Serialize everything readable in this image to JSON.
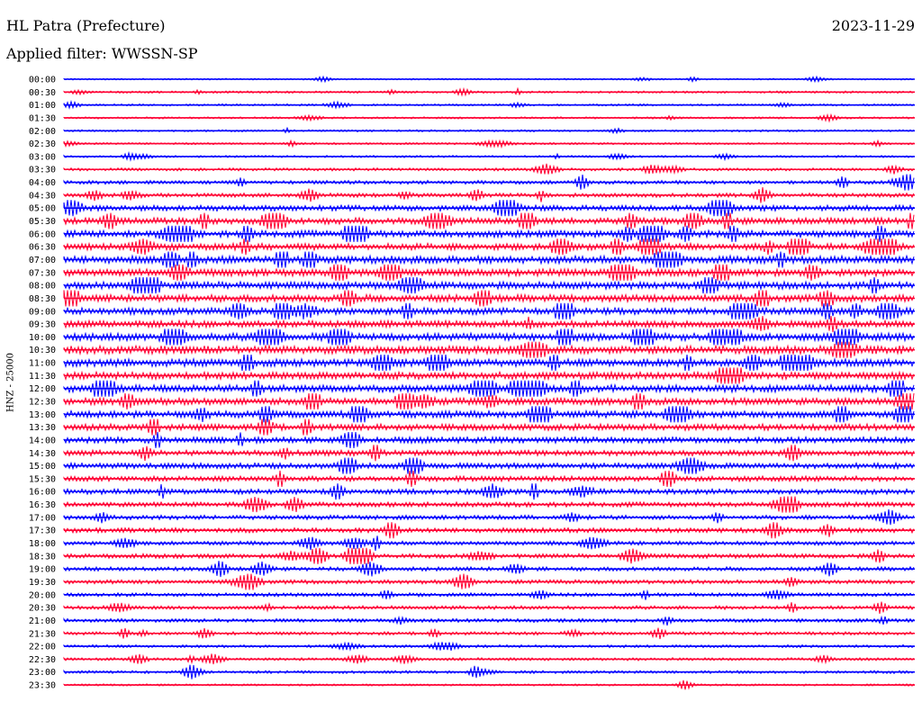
{
  "header": {
    "station": "HL Patra (Prefecture)",
    "date": "2023-11-29",
    "filter": "Applied filter: WWSSN-SP"
  },
  "chart_data": {
    "type": "line",
    "ylabel": "HNZ - 25000",
    "colors": [
      "#0000ff",
      "#ff0033"
    ],
    "grid": false,
    "legend": "none",
    "series": [
      {
        "time": "00:00",
        "level": 0.05
      },
      {
        "time": "00:30",
        "level": 0.12
      },
      {
        "time": "01:00",
        "level": 0.1
      },
      {
        "time": "01:30",
        "level": 0.1
      },
      {
        "time": "02:00",
        "level": 0.1
      },
      {
        "time": "02:30",
        "level": 0.1
      },
      {
        "time": "03:00",
        "level": 0.12
      },
      {
        "time": "03:30",
        "level": 0.2
      },
      {
        "time": "04:00",
        "level": 0.3
      },
      {
        "time": "04:30",
        "level": 0.35
      },
      {
        "time": "05:00",
        "level": 0.55
      },
      {
        "time": "05:30",
        "level": 0.65
      },
      {
        "time": "06:00",
        "level": 0.7
      },
      {
        "time": "06:30",
        "level": 0.7
      },
      {
        "time": "07:00",
        "level": 0.8
      },
      {
        "time": "07:30",
        "level": 0.75
      },
      {
        "time": "08:00",
        "level": 0.75
      },
      {
        "time": "08:30",
        "level": 0.75
      },
      {
        "time": "09:00",
        "level": 0.7
      },
      {
        "time": "09:30",
        "level": 0.7
      },
      {
        "time": "10:00",
        "level": 0.8
      },
      {
        "time": "10:30",
        "level": 0.85
      },
      {
        "time": "11:00",
        "level": 0.8
      },
      {
        "time": "11:30",
        "level": 0.75
      },
      {
        "time": "12:00",
        "level": 0.75
      },
      {
        "time": "12:30",
        "level": 0.7
      },
      {
        "time": "13:00",
        "level": 0.7
      },
      {
        "time": "13:30",
        "level": 0.65
      },
      {
        "time": "14:00",
        "level": 0.6
      },
      {
        "time": "14:30",
        "level": 0.55
      },
      {
        "time": "15:00",
        "level": 0.55
      },
      {
        "time": "15:30",
        "level": 0.5
      },
      {
        "time": "16:00",
        "level": 0.5
      },
      {
        "time": "16:30",
        "level": 0.45
      },
      {
        "time": "17:00",
        "level": 0.4
      },
      {
        "time": "17:30",
        "level": 0.45
      },
      {
        "time": "18:00",
        "level": 0.35
      },
      {
        "time": "18:30",
        "level": 0.4
      },
      {
        "time": "19:00",
        "level": 0.35
      },
      {
        "time": "19:30",
        "level": 0.35
      },
      {
        "time": "20:00",
        "level": 0.3
      },
      {
        "time": "20:30",
        "level": 0.3
      },
      {
        "time": "21:00",
        "level": 0.3
      },
      {
        "time": "21:30",
        "level": 0.25
      },
      {
        "time": "22:00",
        "level": 0.2
      },
      {
        "time": "22:30",
        "level": 0.2
      },
      {
        "time": "23:00",
        "level": 0.2
      },
      {
        "time": "23:30",
        "level": 0.1
      }
    ]
  }
}
